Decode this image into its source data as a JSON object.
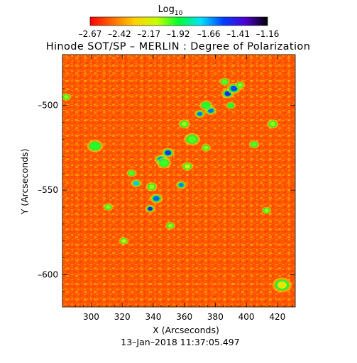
{
  "chart_data": {
    "type": "heatmap",
    "title": "Hinode SOT/SP – MERLIN : Degree of Polarization",
    "xlabel": "X (Arcseconds)",
    "ylabel": "Y (Arcseconds)",
    "footer": "13–Jan–2018 11:37:05.497",
    "xlim": [
      281.5,
      431.5
    ],
    "ylim": [
      -619,
      -470
    ],
    "xticks": [
      300,
      320,
      340,
      360,
      380,
      400,
      420
    ],
    "yticks": [
      -500,
      -550,
      -600
    ],
    "colorbar": {
      "title": "Log",
      "title_subscript": "10",
      "range": [
        -2.67,
        -1.16
      ],
      "tick_values": [
        -2.67,
        -2.42,
        -2.17,
        -1.92,
        -1.66,
        -1.41,
        -1.16
      ],
      "tick_labels": [
        "–2.67",
        "–2.42",
        "–2.17",
        "–1.92",
        "–1.66",
        "–1.41",
        "–1.16"
      ],
      "colormap": [
        "#ff0000",
        "#ff6a00",
        "#ffd000",
        "#c8ff00",
        "#00ff30",
        "#00e0ff",
        "#0040ff",
        "#5000d0",
        "#000000"
      ]
    },
    "background_level": -2.52,
    "features": [
      {
        "x": 302.5,
        "y": -524,
        "r": 2.5,
        "value": -1.95
      },
      {
        "x": 284,
        "y": -495,
        "r": 1.5,
        "value": -2.05
      },
      {
        "x": 326,
        "y": -540,
        "r": 1.5,
        "value": -2.0
      },
      {
        "x": 329,
        "y": -546,
        "r": 1.6,
        "value": -1.7
      },
      {
        "x": 339,
        "y": -548,
        "r": 1.8,
        "value": -2.05
      },
      {
        "x": 345,
        "y": -532,
        "r": 2.0,
        "value": -1.62
      },
      {
        "x": 349.5,
        "y": -528,
        "r": 2.0,
        "value": -1.5
      },
      {
        "x": 347,
        "y": -534,
        "r": 2.2,
        "value": -1.98
      },
      {
        "x": 342,
        "y": -555,
        "r": 2.0,
        "value": -1.58
      },
      {
        "x": 338,
        "y": -561,
        "r": 1.6,
        "value": -1.45
      },
      {
        "x": 351,
        "y": -571,
        "r": 1.5,
        "value": -2.05
      },
      {
        "x": 358,
        "y": -547,
        "r": 1.6,
        "value": -1.62
      },
      {
        "x": 362,
        "y": -536,
        "r": 1.8,
        "value": -2.1
      },
      {
        "x": 360,
        "y": -511,
        "r": 1.8,
        "value": -2.05
      },
      {
        "x": 365,
        "y": -520,
        "r": 2.5,
        "value": -2.0
      },
      {
        "x": 374,
        "y": -525,
        "r": 1.5,
        "value": -2.05
      },
      {
        "x": 377,
        "y": -503,
        "r": 1.8,
        "value": -1.6
      },
      {
        "x": 370,
        "y": -505,
        "r": 1.6,
        "value": -1.6
      },
      {
        "x": 374,
        "y": -500,
        "r": 2.0,
        "value": -1.95
      },
      {
        "x": 388,
        "y": -493,
        "r": 2.0,
        "value": -1.48
      },
      {
        "x": 392,
        "y": -490,
        "r": 2.2,
        "value": -1.55
      },
      {
        "x": 386,
        "y": -486,
        "r": 1.6,
        "value": -2.0
      },
      {
        "x": 390,
        "y": -500,
        "r": 1.5,
        "value": -1.95
      },
      {
        "x": 405,
        "y": -523,
        "r": 1.6,
        "value": -2.0
      },
      {
        "x": 417,
        "y": -511,
        "r": 1.8,
        "value": -2.05
      },
      {
        "x": 396,
        "y": -488,
        "r": 1.5,
        "value": -2.05
      },
      {
        "x": 311,
        "y": -560,
        "r": 1.5,
        "value": -2.05
      },
      {
        "x": 321,
        "y": -580,
        "r": 1.5,
        "value": -2.1
      },
      {
        "x": 413,
        "y": -562,
        "r": 1.5,
        "value": -2.05
      },
      {
        "x": 423,
        "y": -606,
        "r": 3.0,
        "value": -2.2
      }
    ]
  }
}
